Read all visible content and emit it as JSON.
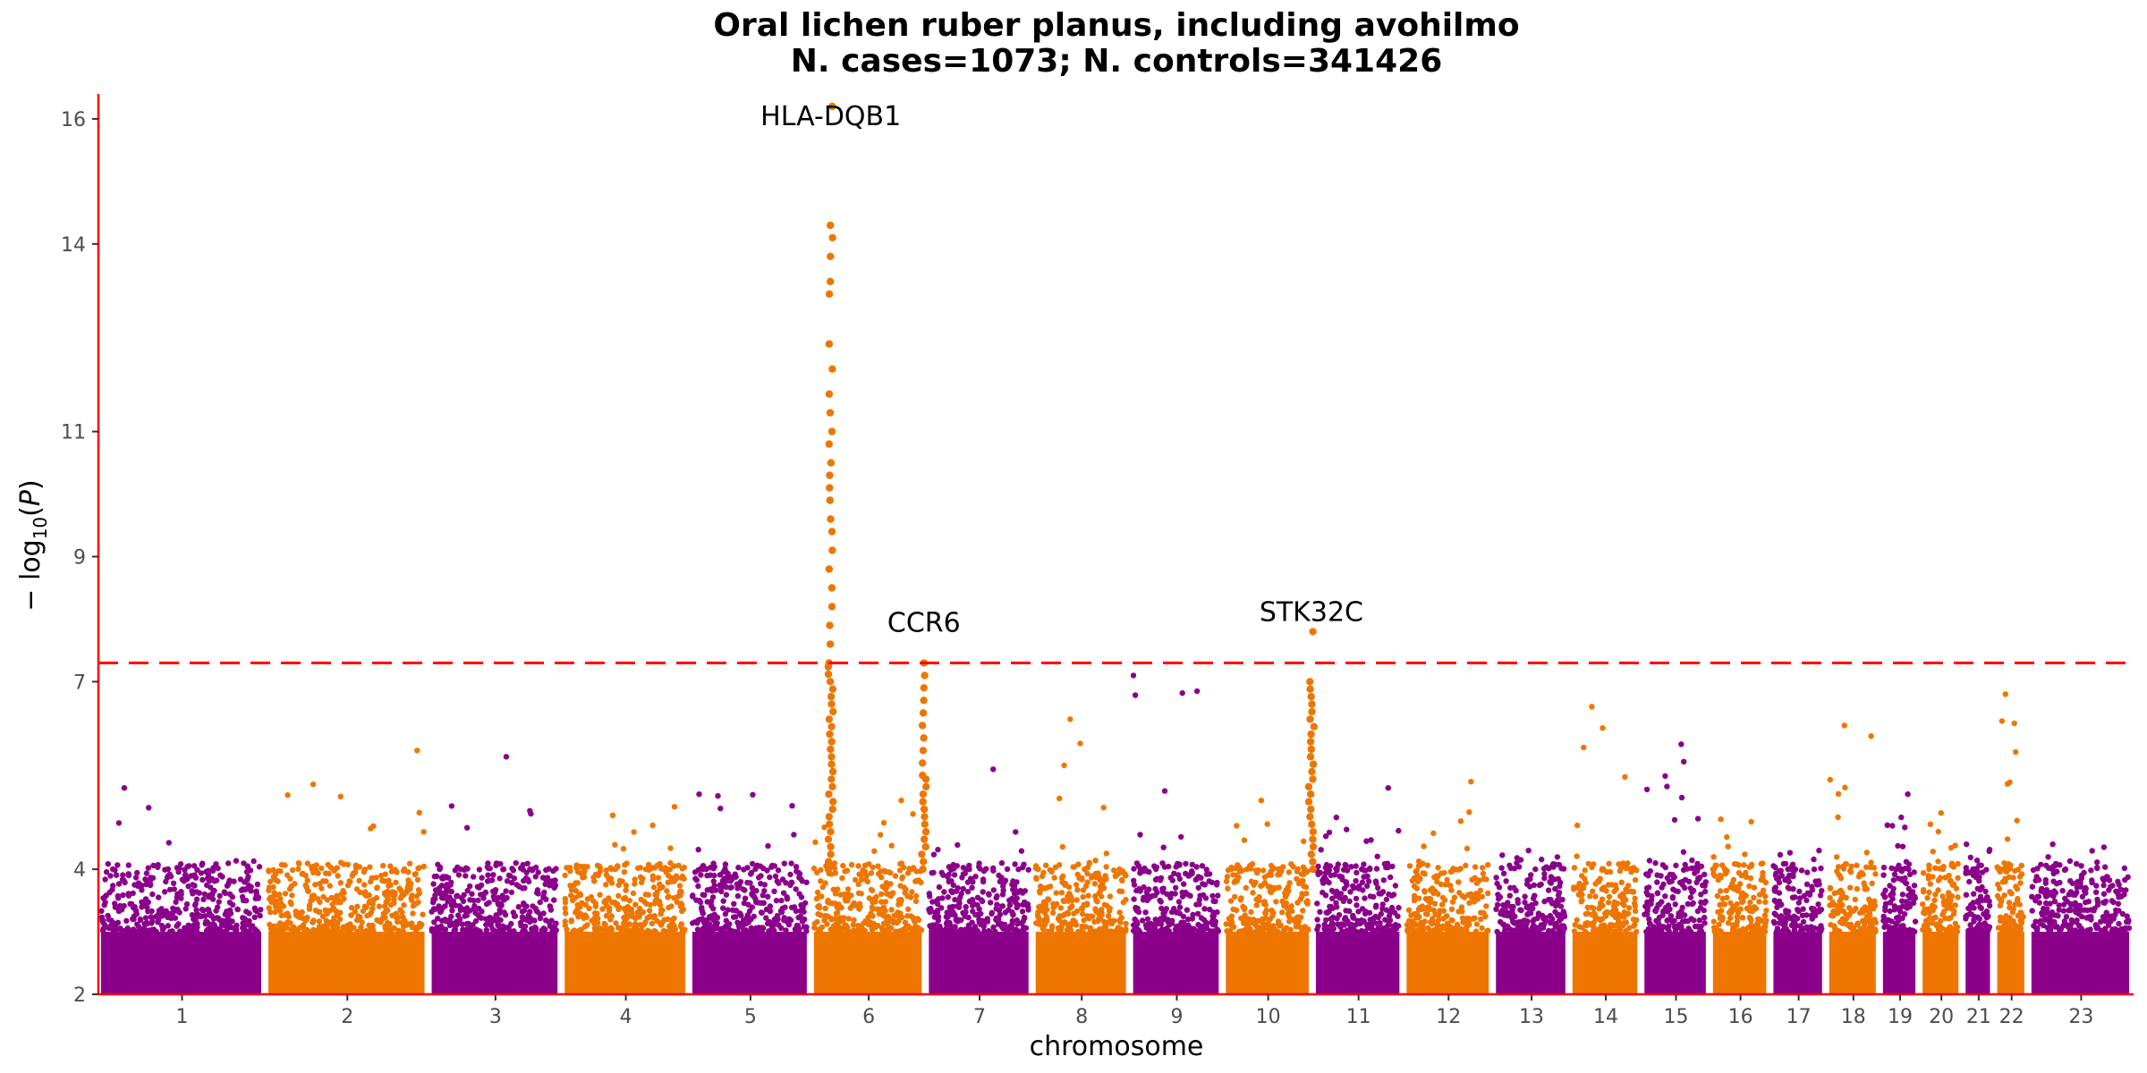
{
  "chart_data": {
    "type": "scatter",
    "subtype": "manhattan",
    "title": "Oral lichen ruber planus, including avohilmo",
    "subtitle": "N. cases=1073; N. controls=341426",
    "xlabel": "chromosome",
    "ylabel": "− log10(P)",
    "ylim": [
      2,
      16.4
    ],
    "yticks": [
      2,
      4,
      7,
      9,
      11,
      14,
      16
    ],
    "significance_threshold": 7.3,
    "colors": {
      "odd_chromosome": "#8b008b",
      "even_chromosome": "#ee7600",
      "threshold_line": "#ff0000",
      "axis": "#ff0000"
    },
    "chromosomes": [
      {
        "label": "1",
        "relative_length": 249
      },
      {
        "label": "2",
        "relative_length": 243
      },
      {
        "label": "3",
        "relative_length": 198
      },
      {
        "label": "4",
        "relative_length": 190
      },
      {
        "label": "5",
        "relative_length": 181
      },
      {
        "label": "6",
        "relative_length": 171
      },
      {
        "label": "7",
        "relative_length": 159
      },
      {
        "label": "8",
        "relative_length": 145
      },
      {
        "label": "9",
        "relative_length": 138
      },
      {
        "label": "10",
        "relative_length": 134
      },
      {
        "label": "11",
        "relative_length": 135
      },
      {
        "label": "12",
        "relative_length": 133
      },
      {
        "label": "13",
        "relative_length": 114
      },
      {
        "label": "14",
        "relative_length": 107
      },
      {
        "label": "15",
        "relative_length": 102
      },
      {
        "label": "16",
        "relative_length": 90
      },
      {
        "label": "17",
        "relative_length": 83
      },
      {
        "label": "18",
        "relative_length": 80
      },
      {
        "label": "19",
        "relative_length": 59
      },
      {
        "label": "20",
        "relative_length": 64
      },
      {
        "label": "21",
        "relative_length": 47
      },
      {
        "label": "22",
        "relative_length": 51
      },
      {
        "label": "23",
        "relative_length": 156
      }
    ],
    "baseline_peak_by_chromosome": [
      5.3,
      5.9,
      5.8,
      5.0,
      5.2,
      5.1,
      5.6,
      6.4,
      7.1,
      5.1,
      5.3,
      5.4,
      4.3,
      6.6,
      6.0,
      4.8,
      4.3,
      6.3,
      5.2,
      4.9,
      4.4,
      6.8,
      4.4
    ],
    "peaks": [
      {
        "chromosome": "6",
        "position": 0.17,
        "max_y": 16.2,
        "points": [
          16.2,
          14.3,
          14.1,
          13.8,
          13.4,
          13.2,
          12.4,
          12.0,
          11.6,
          11.3,
          11.0,
          10.8,
          10.5,
          10.3,
          10.1,
          9.9,
          9.6,
          9.4,
          9.1,
          8.8,
          8.5,
          8.2,
          7.9,
          7.6,
          7.3
        ]
      },
      {
        "chromosome": "6",
        "position": 0.98,
        "max_y": 7.3,
        "points": [
          7.3,
          7.1,
          6.9,
          6.7,
          6.5,
          6.3,
          6.1,
          5.9,
          5.7,
          5.5
        ]
      },
      {
        "chromosome": "10",
        "position": 0.98,
        "max_y": 7.8,
        "points": [
          7.8,
          7.0
        ]
      }
    ],
    "annotations": [
      {
        "text": "HLA-DQB1",
        "chromosome": "6",
        "position": 0.17,
        "y": 15.9
      },
      {
        "text": "CCR6",
        "chromosome": "6",
        "position": 0.98,
        "y": 7.8
      },
      {
        "text": "STK32C",
        "chromosome": "10",
        "position": 0.98,
        "y": 7.97
      }
    ]
  }
}
